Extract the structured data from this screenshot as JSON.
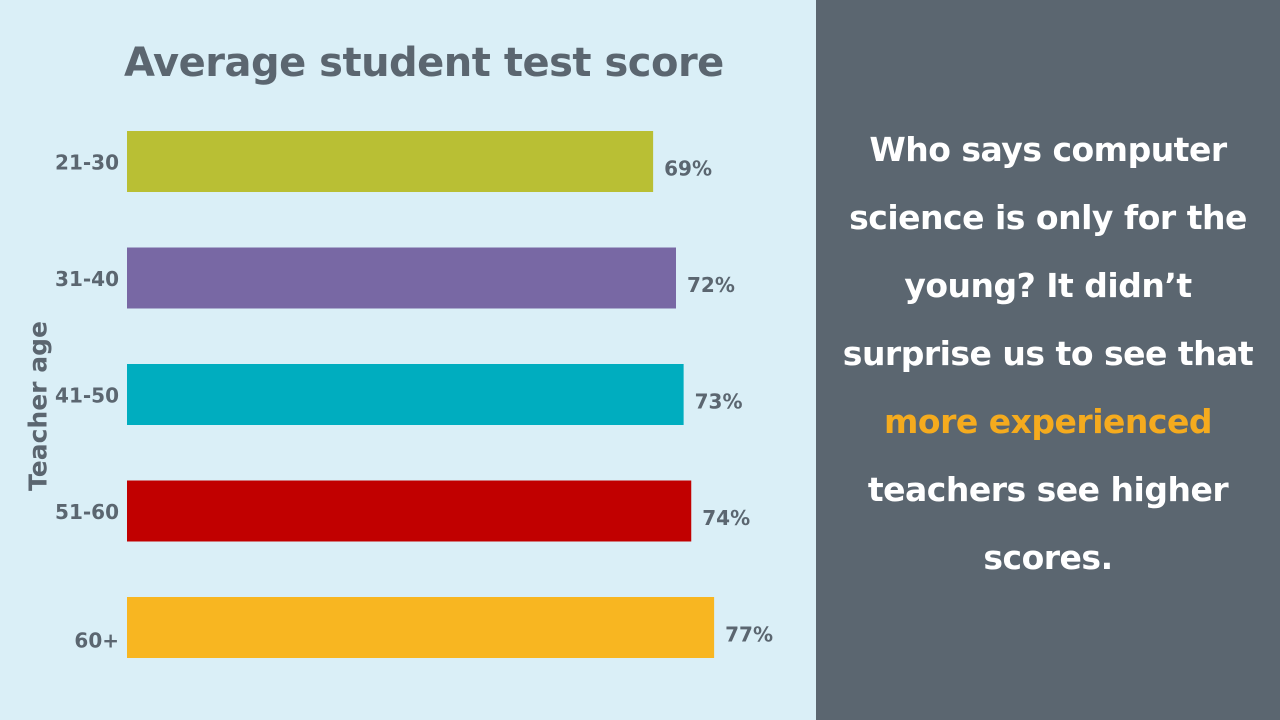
{
  "chart_data": {
    "type": "bar",
    "orientation": "horizontal",
    "title": "Average student test score",
    "xlabel": "",
    "ylabel": "Teacher age",
    "categories": [
      "21-30",
      "31-40",
      "41-50",
      "51-60",
      "60+"
    ],
    "values": [
      69,
      72,
      73,
      74,
      77
    ],
    "value_labels": [
      "69%",
      "72%",
      "73%",
      "74%",
      "77%"
    ],
    "bar_colors": [
      "#b9bf34",
      "#7868a4",
      "#00adbf",
      "#c10000",
      "#f8b621"
    ],
    "xlim": [
      0,
      80
    ],
    "grid": false,
    "legend": "none"
  },
  "panel": {
    "text_before": "Who says computer science is only for the young? It didn’t surprise us to see that ",
    "highlight": "more experienced",
    "text_after": " teachers see higher scores.",
    "highlight_color": "#f5ab1e"
  },
  "colors": {
    "chart_background": "#daeff7",
    "panel_background": "#5b6670",
    "label_color": "#5b6670"
  }
}
